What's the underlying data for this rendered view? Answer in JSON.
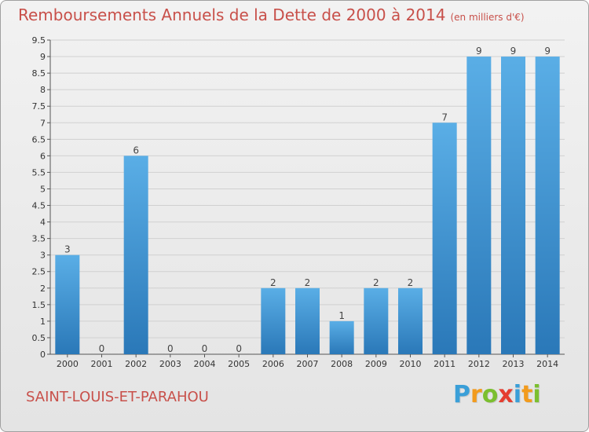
{
  "header": {
    "title": "Remboursements Annuels de la Dette de 2000 à 2014",
    "unit": "(en milliers d'€)"
  },
  "footer": {
    "commune": "SAINT-LOUIS-ET-PARAHOU",
    "logo_letters": [
      "P",
      "r",
      "o",
      "x",
      "i",
      "t",
      "i"
    ]
  },
  "colors": {
    "title": "#c8504a",
    "bar_top": "#5aaee6",
    "bar_bottom": "#2a78b8",
    "grid": "#d0d0d0"
  },
  "chart_data": {
    "type": "bar",
    "title": "Remboursements Annuels de la Dette de 2000 à 2014",
    "xlabel": "",
    "ylabel": "",
    "categories": [
      "2000",
      "2001",
      "2002",
      "2003",
      "2004",
      "2005",
      "2006",
      "2007",
      "2008",
      "2009",
      "2010",
      "2011",
      "2012",
      "2013",
      "2014"
    ],
    "values": [
      3,
      0,
      6,
      0,
      0,
      0,
      2,
      2,
      1,
      2,
      2,
      7,
      9,
      9,
      9
    ],
    "ylim": [
      0,
      9.5
    ],
    "yticks": [
      "0",
      "0.5",
      "1",
      "1.5",
      "2",
      "2.5",
      "3",
      "3.5",
      "4",
      "4.5",
      "5",
      "5.5",
      "6",
      "6.5",
      "7",
      "7.5",
      "8",
      "8.5",
      "9",
      "9.5"
    ],
    "grid": true,
    "legend": "none"
  }
}
